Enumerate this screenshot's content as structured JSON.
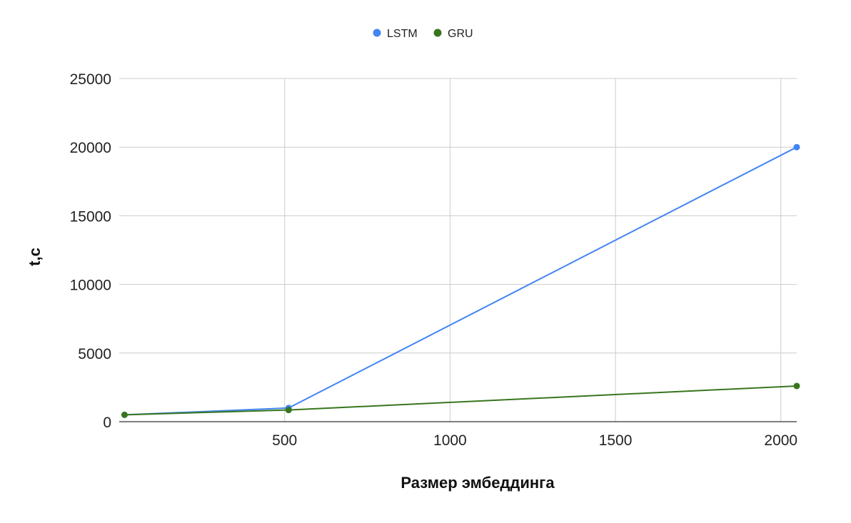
{
  "chart_data": {
    "type": "line",
    "xlabel": "Размер эмбеддинга",
    "ylabel": "t,c",
    "xlim": [
      0,
      2048
    ],
    "ylim": [
      0,
      25000
    ],
    "xticks": [
      500,
      1000,
      1500,
      2000
    ],
    "yticks": [
      0,
      5000,
      10000,
      15000,
      20000,
      25000
    ],
    "grid": true,
    "legend_position": "top",
    "series": [
      {
        "name": "LSTM",
        "color": "#4285f4",
        "points": [
          {
            "x": 16,
            "y": 500
          },
          {
            "x": 512,
            "y": 1000
          },
          {
            "x": 2048,
            "y": 20000
          }
        ]
      },
      {
        "name": "GRU",
        "color": "#38761d",
        "points": [
          {
            "x": 16,
            "y": 500
          },
          {
            "x": 512,
            "y": 850
          },
          {
            "x": 2048,
            "y": 2600
          }
        ]
      }
    ]
  }
}
